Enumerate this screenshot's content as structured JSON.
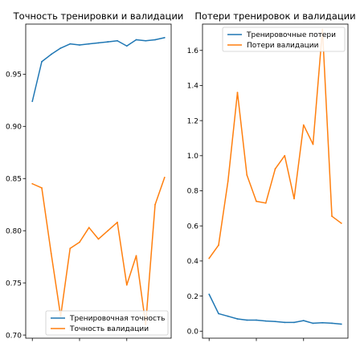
{
  "chart_data": [
    {
      "type": "line",
      "title": "Точность тренировки и валидации",
      "x": [
        0,
        1,
        2,
        3,
        4,
        5,
        6,
        7,
        8,
        9,
        10,
        11,
        12,
        13,
        14
      ],
      "xlim": [
        -0.7,
        14.7
      ],
      "ylim": [
        0.697,
        0.998
      ],
      "yticks": [
        0.7,
        0.75,
        0.8,
        0.85,
        0.9,
        0.95
      ],
      "ytick_labels": [
        "0.70",
        "0.75",
        "0.80",
        "0.85",
        "0.90",
        "0.95"
      ],
      "xticks": [
        0,
        5,
        10
      ],
      "xtick_labels": [
        "",
        "",
        ""
      ],
      "legend_position": "lower-right",
      "series": [
        {
          "name": "Тренировочная точность",
          "color": "#1f77b4",
          "values": [
            0.924,
            0.962,
            0.969,
            0.975,
            0.979,
            0.978,
            0.979,
            0.98,
            0.981,
            0.982,
            0.977,
            0.983,
            0.982,
            0.983,
            0.985
          ]
        },
        {
          "name": "Точность валидации",
          "color": "#ff7f0e",
          "values": [
            0.845,
            0.841,
            0.778,
            0.718,
            0.783,
            0.789,
            0.803,
            0.792,
            0.8,
            0.808,
            0.748,
            0.776,
            0.71,
            0.825,
            0.851
          ]
        }
      ]
    },
    {
      "type": "line",
      "title": "Потери тренировок и валидации",
      "x": [
        0,
        1,
        2,
        3,
        4,
        5,
        6,
        7,
        8,
        9,
        10,
        11,
        12,
        13,
        14
      ],
      "xlim": [
        -0.7,
        14.7
      ],
      "ylim": [
        -0.04,
        1.75
      ],
      "yticks": [
        0.0,
        0.2,
        0.4,
        0.6,
        0.8,
        1.0,
        1.2,
        1.4,
        1.6
      ],
      "ytick_labels": [
        "0.0",
        "0.2",
        "0.4",
        "0.6",
        "0.8",
        "1.0",
        "1.2",
        "1.4",
        "1.6"
      ],
      "xticks": [
        0,
        5,
        10
      ],
      "xtick_labels": [
        "",
        "",
        ""
      ],
      "legend_position": "upper-right",
      "series": [
        {
          "name": "Тренировочные потери",
          "color": "#1f77b4",
          "values": [
            0.21,
            0.1,
            0.085,
            0.07,
            0.063,
            0.063,
            0.058,
            0.055,
            0.05,
            0.05,
            0.06,
            0.045,
            0.048,
            0.045,
            0.04
          ]
        },
        {
          "name": "Потери валидации",
          "color": "#ff7f0e",
          "values": [
            0.415,
            0.49,
            0.855,
            1.36,
            0.89,
            0.74,
            0.73,
            0.925,
            1.0,
            0.755,
            1.175,
            1.065,
            1.72,
            0.655,
            0.615
          ]
        }
      ]
    }
  ]
}
